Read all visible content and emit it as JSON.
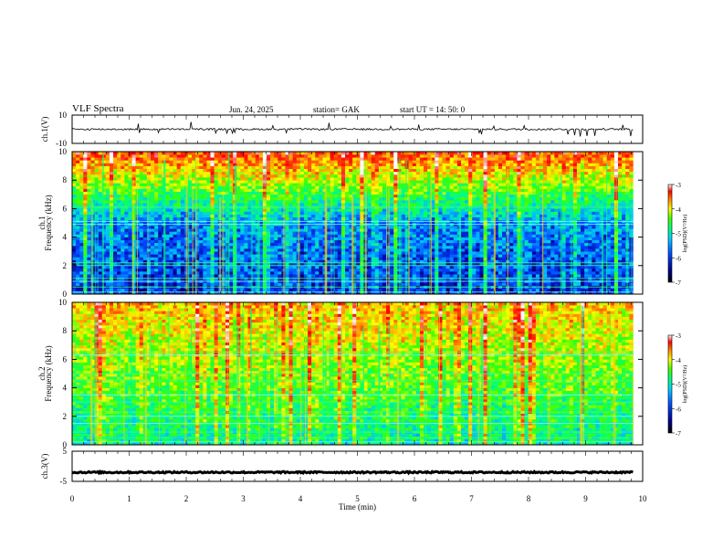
{
  "header": {
    "title": "VLF  Spectra",
    "date": "Jun. 24, 2025",
    "station": "station= GAK",
    "start": "start  UT  =   14: 50: 0"
  },
  "colors": {
    "frame": "#000000",
    "spectro_bg": "#000033",
    "colormap": [
      "#1a0000",
      "#00008b",
      "#0040ff",
      "#00bfff",
      "#00ff80",
      "#40ff00",
      "#ffff00",
      "#ff8000",
      "#ff0000",
      "#ffffff"
    ]
  },
  "chart_data": [
    {
      "type": "line",
      "panel": "ch1-waveform",
      "ylabel": "ch.1(V)",
      "ylim": [
        -10,
        10
      ],
      "yticks": [
        "10",
        "-10"
      ],
      "xlim": [
        0,
        10
      ],
      "baseline": 0,
      "note_values": "trace stays near 0 V with spikes up to about ±4 V"
    },
    {
      "type": "heatmap",
      "panel": "ch1-spectrogram",
      "ylabel": "Frequency  (kHz)",
      "channel_label": "ch.1",
      "ylim": [
        0,
        10
      ],
      "yticks": [
        "0",
        "2",
        "4",
        "6",
        "8",
        "10"
      ],
      "xlim": [
        0,
        9.83
      ],
      "colorbar": {
        "label": "log(PSD)(V²/Hz)",
        "range": [
          -7,
          -3
        ],
        "ticks": [
          "-3",
          "-4",
          "-5",
          "-6",
          "-7"
        ]
      },
      "lines_khz": [
        0.15,
        0.5,
        0.9,
        1.1,
        2.0,
        2.2,
        4.9,
        5.1,
        6.1
      ]
    },
    {
      "type": "heatmap",
      "panel": "ch2-spectrogram",
      "ylabel": "Frequency  (kHz)",
      "channel_label": "ch.2",
      "ylim": [
        0,
        10
      ],
      "yticks": [
        "0",
        "2",
        "4",
        "6",
        "8",
        "10"
      ],
      "xlim": [
        0,
        9.83
      ],
      "colorbar": {
        "label": "log(PSD)(V²/Hz)",
        "range": [
          -7,
          -3
        ],
        "ticks": [
          "-3",
          "-4",
          "-5",
          "-6",
          "-7"
        ]
      },
      "lines_khz": [
        0.2,
        0.5,
        0.9,
        1.5,
        2.0,
        2.3,
        3.0,
        3.5,
        4.5,
        5.0,
        6.3,
        6.5
      ]
    },
    {
      "type": "line",
      "panel": "ch3-waveform",
      "ylabel": "ch.3(V)",
      "ylim": [
        -5,
        5
      ],
      "yticks": [
        "5",
        "-5"
      ],
      "xlim": [
        0,
        10
      ],
      "baseline": -2
    }
  ],
  "xaxis": {
    "label": "Time  (min)",
    "ticks": [
      "0",
      "1",
      "2",
      "3",
      "4",
      "5",
      "6",
      "7",
      "8",
      "9",
      "10"
    ]
  }
}
